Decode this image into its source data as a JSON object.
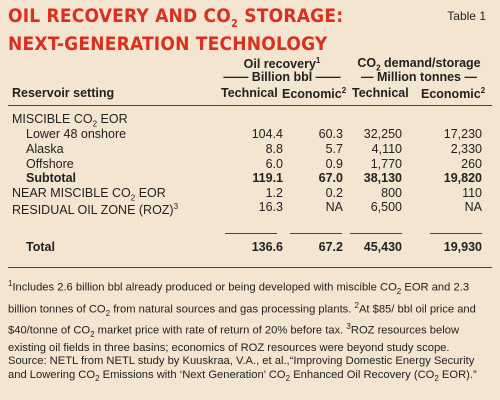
{
  "title_line1": "OIL RECOVERY AND CO",
  "title_line1_sub": "2",
  "title_line1_end": " STORAGE:",
  "title_line2": "NEXT-GENERATION TECHNOLOGY",
  "table_label": "Table 1",
  "header": {
    "oil_recovery": "Oil recovery",
    "oil_sup": "1",
    "oil_units": "—— Billion bbl ——",
    "co2_a": "CO",
    "co2_sub": "2",
    "co2_b": " demand/storage",
    "co2_units": "— Million tonnes —",
    "reservoir": "Reservoir setting",
    "technical": "Technical",
    "economic": "Economic",
    "economic_sup": "2"
  },
  "rows": [
    {
      "label": "MISCIBLE CO",
      "sub": "2",
      "label_end": " EOR",
      "indent": false,
      "bold": false,
      "v": [
        "",
        "",
        "",
        ""
      ]
    },
    {
      "label": "Lower 48 onshore",
      "indent": true,
      "bold": false,
      "v": [
        "104.4",
        "60.3",
        "32,250",
        "17,230"
      ]
    },
    {
      "label": "Alaska",
      "indent": true,
      "bold": false,
      "v": [
        "8.8",
        "5.7",
        "4,110",
        "2,330"
      ]
    },
    {
      "label": "Offshore",
      "indent": true,
      "bold": false,
      "v": [
        "6.0",
        "0.9",
        "1,770",
        "260"
      ]
    },
    {
      "label": "Subtotal",
      "indent": true,
      "bold": true,
      "v": [
        "119.1",
        "67.0",
        "38,130",
        "19,820"
      ]
    },
    {
      "label": "NEAR MISCIBLE CO",
      "sub": "2",
      "label_end": " EOR",
      "indent": false,
      "bold": false,
      "v": [
        "1.2",
        "0.2",
        "800",
        "110"
      ]
    },
    {
      "label": "RESIDUAL OIL ZONE (ROZ)",
      "sup": "3",
      "indent": false,
      "bold": false,
      "v": [
        "16.3",
        "NA",
        "6,500",
        "NA"
      ]
    }
  ],
  "total": {
    "label": "Total",
    "v": [
      "136.6",
      "67.2",
      "45,430",
      "19,930"
    ]
  },
  "notes": {
    "n1_sup": "1",
    "n1_a": "Includes 2.6 billion bbl already produced or being developed with miscible CO",
    "n1_b": " EOR and 2.3 billion tonnes of CO",
    "n1_c": " from natural sources and gas processing plants. ",
    "n2_sup": "2",
    "n2_a": "At $85/ bbl oil price and $40/tonne of CO",
    "n2_b": " market price with rate of return of 20% before tax. ",
    "n3_sup": "3",
    "n3_a": "ROZ resources below existing oil fields in three basins; economics of ROZ resources were beyond study scope.",
    "source_a": "Source: NETL from NETL study by Kuuskraa, V.A., et al.,“Improving Domestic Energy Security and Lowering CO",
    "source_b": " Emissions with ‘Next Generation’ CO",
    "source_c": " Enhanced Oil Recovery (CO",
    "source_d": " EOR).”",
    "sub2": "2"
  }
}
